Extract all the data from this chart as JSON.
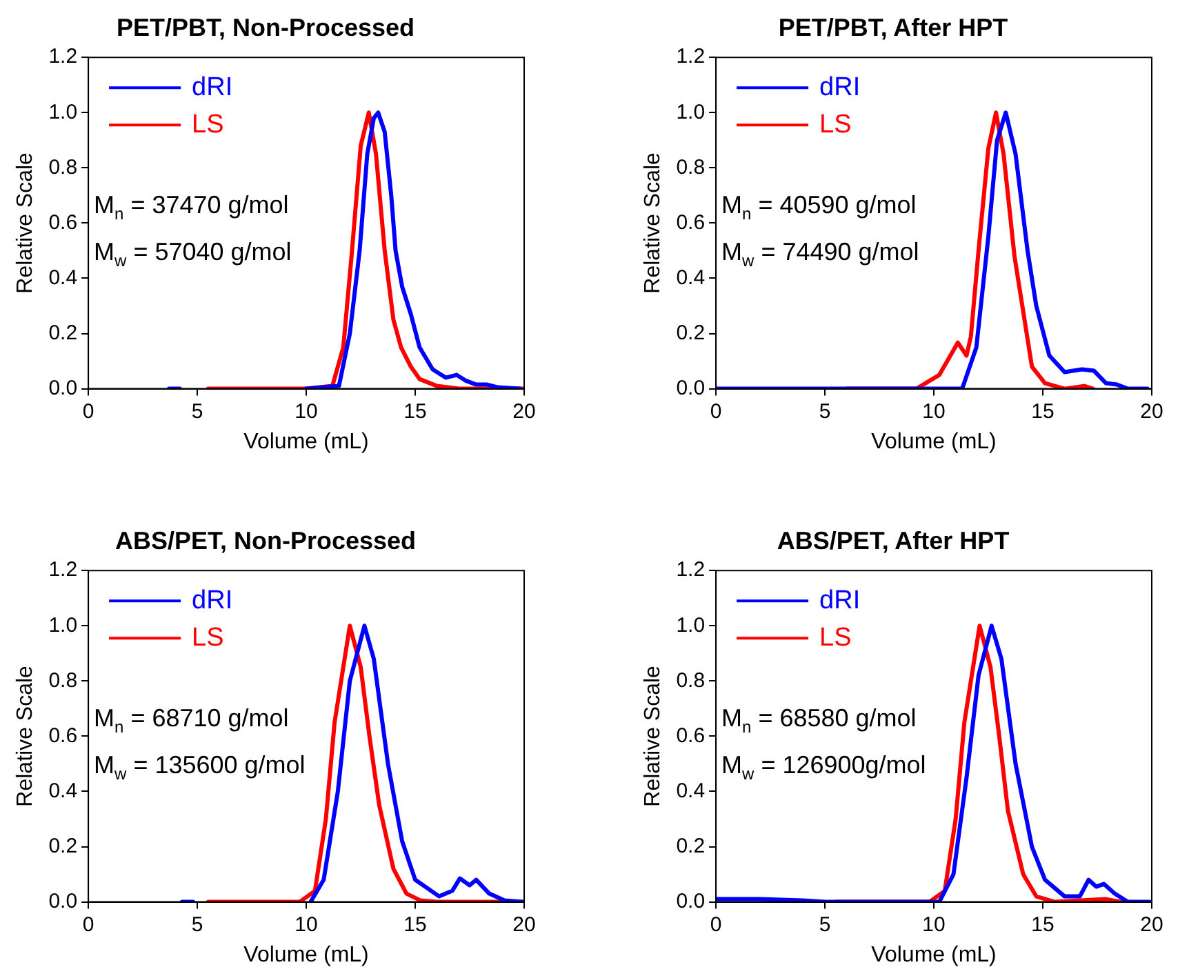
{
  "chart_data": [
    {
      "type": "line",
      "title": "PET/PBT, Non-Processed",
      "xlabel": "Volume (mL)",
      "ylabel": "Relative Scale",
      "xlim": [
        0,
        20
      ],
      "xticks": [
        0,
        5,
        10,
        15,
        20
      ],
      "ylim": [
        0,
        1.2
      ],
      "yticks": [
        {
          "value": 0,
          "label": "0.0"
        },
        {
          "value": 0.2,
          "label": "0.2"
        },
        {
          "value": 0.4,
          "label": "0.4"
        },
        {
          "value": 0.6,
          "label": "0.6"
        },
        {
          "value": 0.8,
          "label": "0.8"
        },
        {
          "value": 1,
          "label": "1.0"
        },
        {
          "value": 1.2,
          "label": "1.2"
        }
      ],
      "grid": false,
      "legend": "top left",
      "annotations": [
        "M$_{n}$ = 37470 g/mol",
        "M$_{w}$ = 57040 g/mol"
      ],
      "series": [
        {
          "name": "dRI",
          "color": "#0000ff",
          "x": [
            3.7,
            4.2,
            4.5,
            10,
            11.5,
            12,
            12.45,
            12.8,
            13.1,
            13.3,
            13.6,
            13.9,
            14.1,
            14.4,
            14.8,
            15.2,
            15.8,
            16.4,
            16.9,
            17.3,
            17.8,
            18.3,
            18.8,
            19.8
          ],
          "values": [
            0,
            0,
            null,
            0,
            0.01,
            0.2,
            0.5,
            0.85,
            0.98,
            1,
            0.93,
            0.7,
            0.5,
            0.37,
            0.27,
            0.15,
            0.07,
            0.04,
            0.05,
            0.03,
            0.015,
            0.015,
            0.005,
            0
          ]
        },
        {
          "name": "LS",
          "color": "#ff0000",
          "x": [
            5.5,
            10,
            11.2,
            11.7,
            12.1,
            12.5,
            12.87,
            13.2,
            13.6,
            14,
            14.35,
            14.8,
            15.2,
            16,
            17,
            20
          ],
          "values": [
            0,
            0,
            0.01,
            0.15,
            0.5,
            0.88,
            1,
            0.85,
            0.5,
            0.25,
            0.15,
            0.08,
            0.035,
            0.01,
            0,
            0
          ]
        }
      ]
    },
    {
      "type": "line",
      "title": "PET/PBT, After HPT",
      "xlabel": "Volume (mL)",
      "ylabel": "Relative Scale",
      "xlim": [
        0,
        20
      ],
      "xticks": [
        0,
        5,
        10,
        15,
        20
      ],
      "ylim": [
        0,
        1.2
      ],
      "yticks": [
        {
          "value": 0,
          "label": "0.0"
        },
        {
          "value": 0.2,
          "label": "0.2"
        },
        {
          "value": 0.4,
          "label": "0.4"
        },
        {
          "value": 0.6,
          "label": "0.6"
        },
        {
          "value": 0.8,
          "label": "0.8"
        },
        {
          "value": 1,
          "label": "1.0"
        },
        {
          "value": 1.2,
          "label": "1.2"
        }
      ],
      "grid": false,
      "legend": "top left",
      "annotations": [
        "M$_{n}$ = 40590 g/mol",
        "M$_{w}$ = 74490 g/mol"
      ],
      "series": [
        {
          "name": "dRI",
          "color": "#0000ff",
          "x": [
            0,
            5,
            8,
            11.3,
            11.95,
            12.5,
            12.9,
            13.3,
            13.75,
            14.3,
            14.7,
            15.3,
            16,
            16.8,
            17.35,
            17.9,
            18.4,
            18.9,
            19.8
          ],
          "values": [
            0,
            0,
            0,
            0,
            0.15,
            0.55,
            0.9,
            1,
            0.85,
            0.5,
            0.3,
            0.12,
            0.06,
            0.07,
            0.065,
            0.02,
            0.015,
            0,
            0
          ]
        },
        {
          "name": "LS",
          "color": "#ff0000",
          "x": [
            6,
            9.2,
            10.25,
            11.1,
            11.5,
            11.7,
            12.05,
            12.5,
            12.85,
            13.2,
            13.7,
            14.5,
            15.1,
            16,
            16.9,
            17.3
          ],
          "values": [
            0,
            0,
            0.05,
            0.167,
            0.12,
            0.19,
            0.5,
            0.87,
            1,
            0.85,
            0.48,
            0.08,
            0.02,
            0,
            0.01,
            0
          ]
        }
      ]
    },
    {
      "type": "line",
      "title": "ABS/PET, Non-Processed",
      "xlabel": "Volume (mL)",
      "ylabel": "Relative Scale",
      "xlim": [
        0,
        20
      ],
      "xticks": [
        0,
        5,
        10,
        15,
        20
      ],
      "ylim": [
        0,
        1.2
      ],
      "yticks": [
        {
          "value": 0,
          "label": "0.0"
        },
        {
          "value": 0.2,
          "label": "0.2"
        },
        {
          "value": 0.4,
          "label": "0.4"
        },
        {
          "value": 0.6,
          "label": "0.6"
        },
        {
          "value": 0.8,
          "label": "0.8"
        },
        {
          "value": 1,
          "label": "1.0"
        },
        {
          "value": 1.2,
          "label": "1.2"
        }
      ],
      "grid": false,
      "legend": "top left",
      "annotations": [
        "M$_{n}$ = 68710 g/mol",
        "M$_{w}$ = 135600 g/mol"
      ],
      "series": [
        {
          "name": "dRI",
          "color": "#0000ff",
          "x": [
            4.3,
            4.8,
            5,
            10.2,
            10.8,
            11.45,
            12,
            12.67,
            13.1,
            13.75,
            14.4,
            15,
            16.1,
            16.7,
            17.05,
            17.5,
            17.8,
            18.4,
            19.1,
            19.9
          ],
          "values": [
            0,
            0,
            null,
            0,
            0.08,
            0.4,
            0.8,
            1,
            0.88,
            0.5,
            0.22,
            0.08,
            0.02,
            0.04,
            0.085,
            0.06,
            0.08,
            0.03,
            0.005,
            0
          ]
        },
        {
          "name": "LS",
          "color": "#ff0000",
          "x": [
            5.5,
            9.7,
            10.4,
            10.9,
            11.3,
            12,
            12.5,
            12.9,
            13.35,
            14,
            14.6,
            15.25,
            16,
            20
          ],
          "values": [
            0,
            0,
            0.04,
            0.3,
            0.65,
            1,
            0.85,
            0.6,
            0.35,
            0.12,
            0.03,
            0.005,
            0,
            0
          ]
        }
      ]
    },
    {
      "type": "line",
      "title": "ABS/PET, After HPT",
      "xlabel": "Volume (mL)",
      "ylabel": "Relative Scale",
      "xlim": [
        0,
        20
      ],
      "xticks": [
        0,
        5,
        10,
        15,
        20
      ],
      "ylim": [
        0,
        1.2
      ],
      "yticks": [
        {
          "value": 0,
          "label": "0.0"
        },
        {
          "value": 0.2,
          "label": "0.2"
        },
        {
          "value": 0.4,
          "label": "0.4"
        },
        {
          "value": 0.6,
          "label": "0.6"
        },
        {
          "value": 0.8,
          "label": "0.8"
        },
        {
          "value": 1,
          "label": "1.0"
        },
        {
          "value": 1.2,
          "label": "1.2"
        }
      ],
      "grid": false,
      "legend": "top left",
      "annotations": [
        "M$_{n}$ = 68580 g/mol",
        "M$_{w}$ = 126900g/mol"
      ],
      "series": [
        {
          "name": "dRI",
          "color": "#0000ff",
          "x": [
            0,
            2,
            4,
            5,
            8,
            10.25,
            10.9,
            11.5,
            12.05,
            12.65,
            13.1,
            13.75,
            14.5,
            15.1,
            16,
            16.7,
            17.1,
            17.45,
            17.8,
            18.3,
            18.9,
            19.9
          ],
          "values": [
            0.01,
            0.01,
            0.005,
            0,
            0,
            0,
            0.1,
            0.45,
            0.82,
            1,
            0.88,
            0.5,
            0.2,
            0.08,
            0.02,
            0.02,
            0.08,
            0.055,
            0.065,
            0.03,
            0,
            0
          ]
        },
        {
          "name": "LS",
          "color": "#ff0000",
          "x": [
            5.5,
            9.8,
            10.5,
            11,
            11.4,
            12.1,
            12.6,
            13,
            13.4,
            14.1,
            14.7,
            15.55,
            17.9,
            18.6
          ],
          "values": [
            0,
            0,
            0.04,
            0.3,
            0.65,
            1,
            0.85,
            0.6,
            0.33,
            0.1,
            0.02,
            0,
            0.01,
            0
          ]
        }
      ]
    }
  ]
}
